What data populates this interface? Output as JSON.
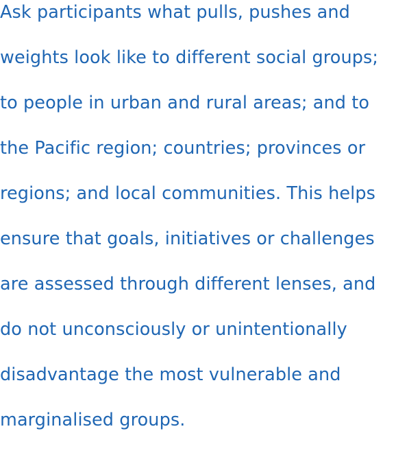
{
  "text_color": "#1f66b3",
  "paragraph": {
    "lines": [
      "Ask participants what pulls, pushes and",
      "weights look like to different social groups;",
      "to people in urban and rural areas; and to",
      "the Pacific region; countries; provinces or",
      "regions; and local communities. This helps",
      "ensure that goals, initiatives or challenges",
      "are assessed through different lenses, and",
      "do not unconsciously or unintentionally",
      "disadvantage the most vulnerable and",
      "marginalised groups."
    ]
  }
}
